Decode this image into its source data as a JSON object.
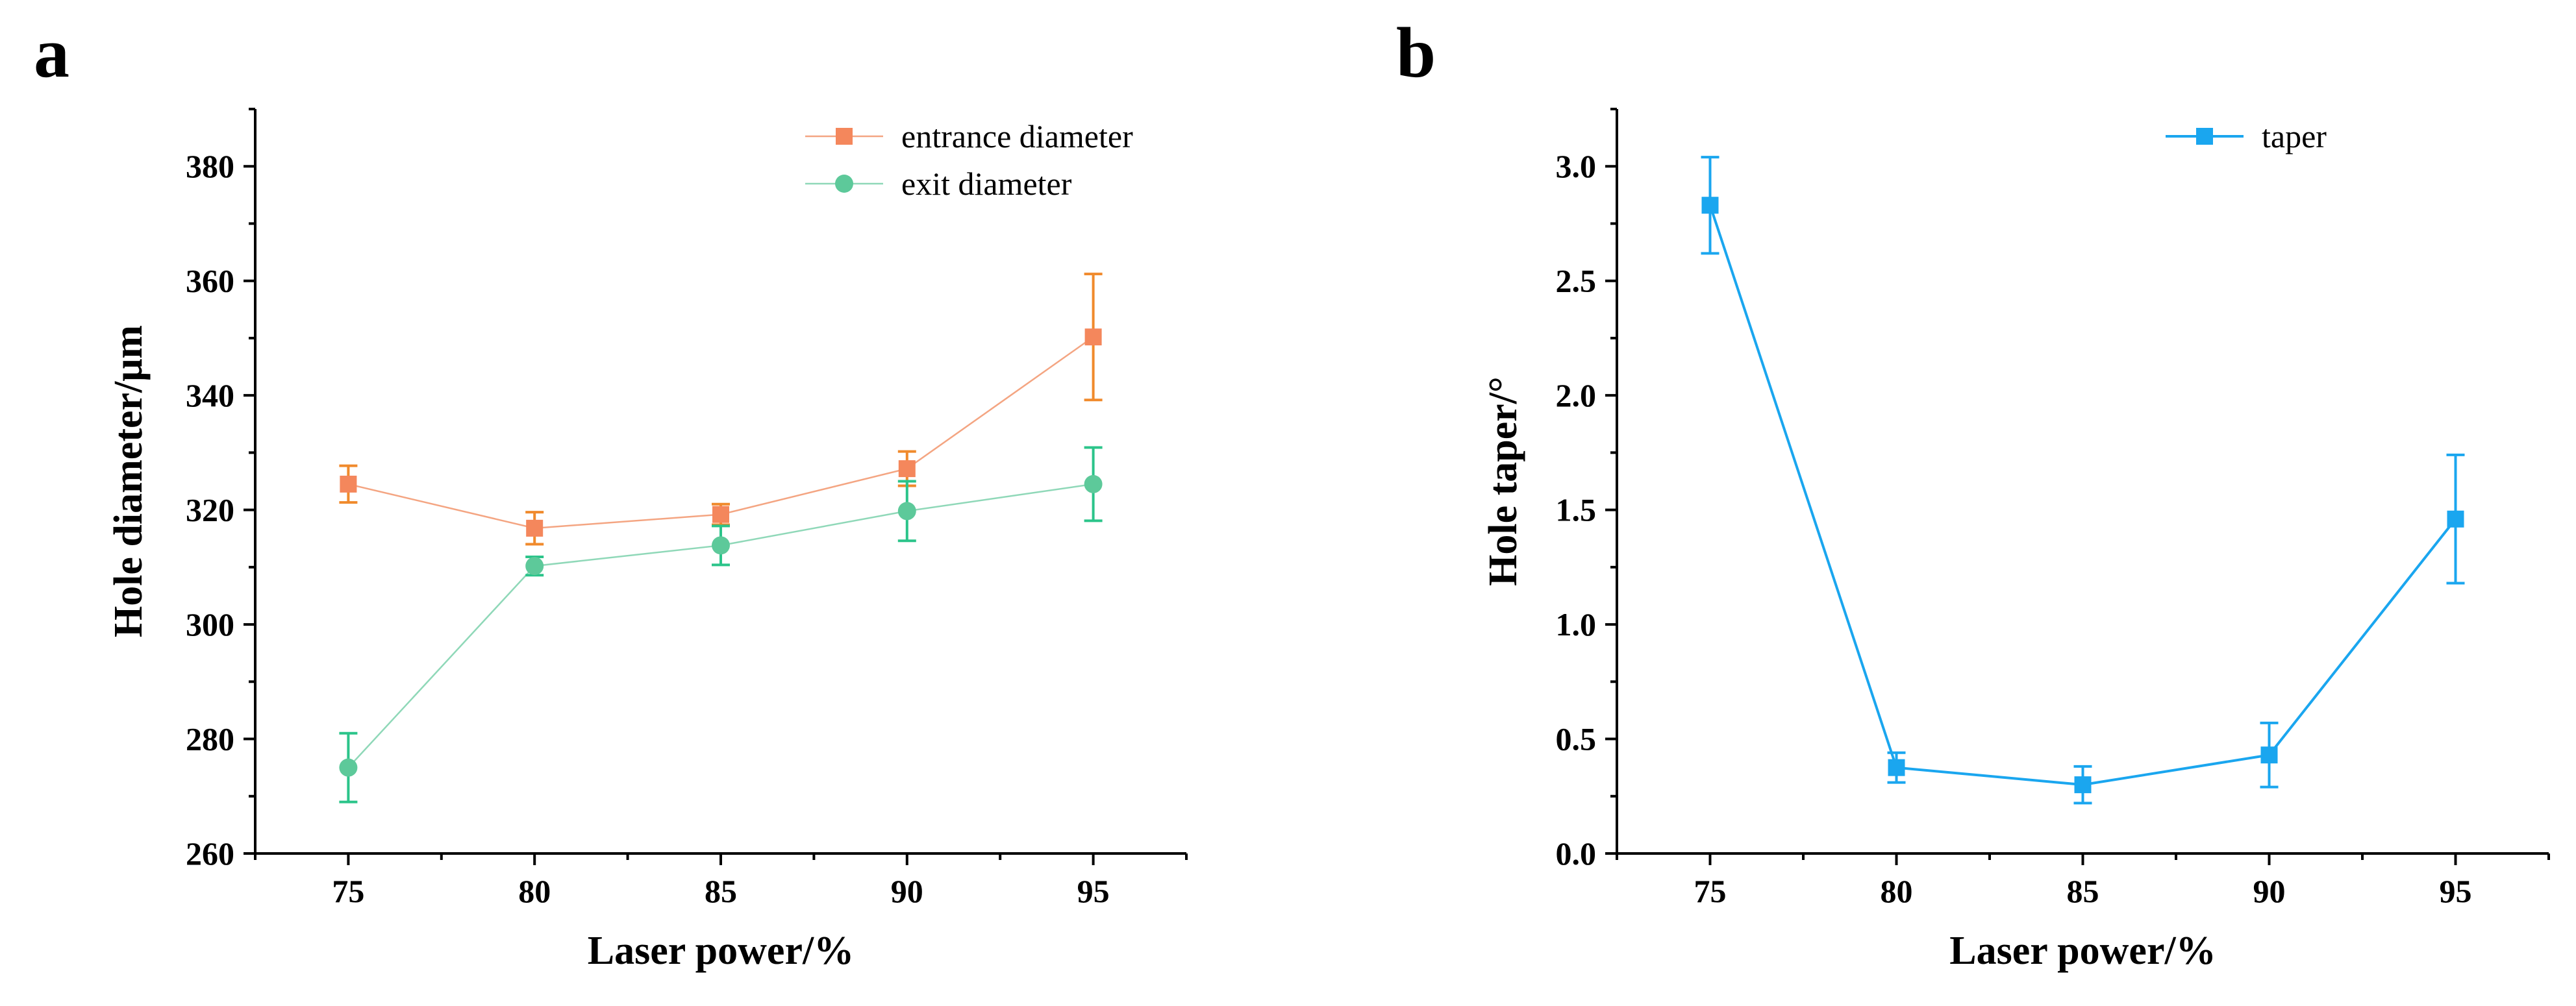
{
  "figure": {
    "panels": [
      "a",
      "b"
    ]
  },
  "chart_data": [
    {
      "type": "line",
      "panel": "a",
      "title": "",
      "xlabel": "Laser power/%",
      "ylabel": "Hole diameter/μm",
      "x": [
        75,
        80,
        85,
        90,
        95
      ],
      "xlim": [
        72.5,
        97.5
      ],
      "ylim": [
        260,
        390
      ],
      "xticks": [
        75,
        80,
        85,
        90,
        95
      ],
      "yticks": [
        260,
        280,
        300,
        320,
        340,
        360,
        380
      ],
      "legend_position": "top-right",
      "series": [
        {
          "name": "entrance diameter",
          "marker": "square",
          "line_color": "#F4A582",
          "marker_color": "#F4875C",
          "error_color": "#F08A2C",
          "values": [
            324.5,
            316.8,
            319.2,
            327.2,
            350.2
          ],
          "errors": [
            3.2,
            2.8,
            1.8,
            3.0,
            11.0
          ]
        },
        {
          "name": "exit diameter",
          "marker": "circle",
          "line_color": "#8FD8B8",
          "marker_color": "#5DC99A",
          "error_color": "#2BC48A",
          "values": [
            275.0,
            310.2,
            313.8,
            319.8,
            324.5
          ],
          "errors": [
            6.0,
            1.6,
            3.4,
            5.2,
            6.4
          ]
        }
      ]
    },
    {
      "type": "line",
      "panel": "b",
      "title": "",
      "xlabel": "Laser power/%",
      "ylabel": "Hole taper/°",
      "x": [
        75,
        80,
        85,
        90,
        95
      ],
      "xlim": [
        72.5,
        97.5
      ],
      "ylim": [
        0.0,
        3.25
      ],
      "xticks": [
        75,
        80,
        85,
        90,
        95
      ],
      "yticks": [
        0.0,
        0.5,
        1.0,
        1.5,
        2.0,
        2.5,
        3.0
      ],
      "ytick_labels": [
        "0.0",
        "0.5",
        "1.0",
        "1.5",
        "2.0",
        "2.5",
        "3.0"
      ],
      "legend_position": "top-right",
      "series": [
        {
          "name": "taper",
          "marker": "square",
          "line_color": "#1AA6EF",
          "marker_color": "#1AA6EF",
          "error_color": "#1AA6EF",
          "values": [
            2.83,
            0.375,
            0.3,
            0.43,
            1.46
          ],
          "errors": [
            0.21,
            0.065,
            0.08,
            0.14,
            0.28
          ]
        }
      ]
    }
  ]
}
